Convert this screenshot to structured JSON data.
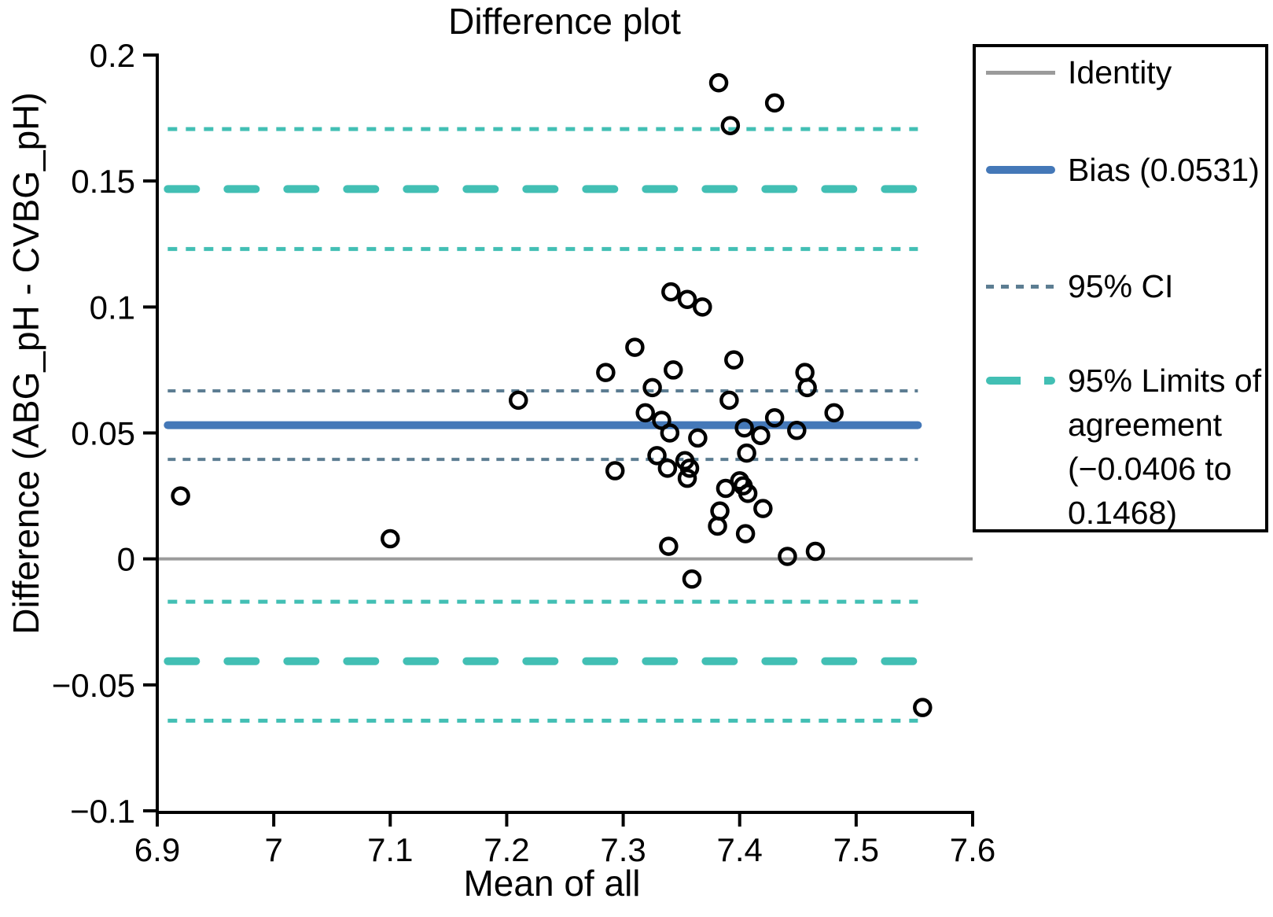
{
  "title": "Difference plot",
  "chart_data": {
    "type": "scatter",
    "title": "Difference plot",
    "xlabel": "Mean of all",
    "ylabel": "Difference (ABG_pH - CVBG_pH)",
    "xlim": [
      6.9,
      7.6
    ],
    "ylim": [
      -0.1,
      0.2
    ],
    "grid": false,
    "legend_position": "outside-right",
    "x_ticks": [
      {
        "v": 6.9,
        "label": "6.9"
      },
      {
        "v": 7.0,
        "label": "7"
      },
      {
        "v": 7.1,
        "label": "7.1"
      },
      {
        "v": 7.2,
        "label": "7.2"
      },
      {
        "v": 7.3,
        "label": "7.3"
      },
      {
        "v": 7.4,
        "label": "7.4"
      },
      {
        "v": 7.5,
        "label": "7.5"
      },
      {
        "v": 7.6,
        "label": "7.6"
      }
    ],
    "y_ticks": [
      {
        "v": 0.2,
        "label": "0.2"
      },
      {
        "v": 0.15,
        "label": "0.15"
      },
      {
        "v": 0.1,
        "label": "0.1"
      },
      {
        "v": 0.05,
        "label": "0.05"
      },
      {
        "v": 0,
        "label": "0"
      },
      {
        "v": -0.05,
        "label": "−0.05"
      },
      {
        "v": -0.1,
        "label": "−0.1"
      }
    ],
    "statistics": {
      "bias": 0.0531,
      "bias_ci": [
        0.0395,
        0.0667
      ],
      "loa_lower": -0.0406,
      "loa_upper": 0.1468,
      "loa_lower_ci": [
        -0.0642,
        -0.017
      ],
      "loa_upper_ci": [
        0.123,
        0.1706
      ]
    },
    "ref_lines": [
      {
        "name": "loa-upper-ci-outer-line",
        "value": 0.1706,
        "style": "loa_ci"
      },
      {
        "name": "loa-upper-line",
        "value": 0.1468,
        "style": "loa"
      },
      {
        "name": "loa-upper-ci-inner-line",
        "value": 0.123,
        "style": "loa_ci"
      },
      {
        "name": "bias-ci-upper-line",
        "value": 0.0667,
        "style": "bias_ci"
      },
      {
        "name": "bias-line",
        "value": 0.0531,
        "style": "bias"
      },
      {
        "name": "bias-ci-lower-line",
        "value": 0.0395,
        "style": "bias_ci"
      },
      {
        "name": "identity-line",
        "value": 0,
        "style": "identity"
      },
      {
        "name": "loa-lower-ci-inner-line",
        "value": -0.017,
        "style": "loa_ci"
      },
      {
        "name": "loa-lower-line",
        "value": -0.0406,
        "style": "loa"
      },
      {
        "name": "loa-lower-ci-outer-line",
        "value": -0.0642,
        "style": "loa_ci"
      }
    ],
    "points": [
      [
        6.92,
        0.025
      ],
      [
        7.1,
        0.008
      ],
      [
        7.21,
        0.063
      ],
      [
        7.285,
        0.074
      ],
      [
        7.293,
        0.035
      ],
      [
        7.31,
        0.084
      ],
      [
        7.319,
        0.058
      ],
      [
        7.325,
        0.068
      ],
      [
        7.329,
        0.041
      ],
      [
        7.333,
        0.055
      ],
      [
        7.338,
        0.036
      ],
      [
        7.339,
        0.005
      ],
      [
        7.341,
        0.106
      ],
      [
        7.343,
        0.075
      ],
      [
        7.34,
        0.05
      ],
      [
        7.353,
        0.039
      ],
      [
        7.355,
        0.103
      ],
      [
        7.355,
        0.032
      ],
      [
        7.357,
        0.036
      ],
      [
        7.359,
        -0.008
      ],
      [
        7.364,
        0.048
      ],
      [
        7.368,
        0.1
      ],
      [
        7.381,
        0.013
      ],
      [
        7.382,
        0.189
      ],
      [
        7.383,
        0.019
      ],
      [
        7.388,
        0.028
      ],
      [
        7.391,
        0.063
      ],
      [
        7.392,
        0.172
      ],
      [
        7.395,
        0.079
      ],
      [
        7.4,
        0.031
      ],
      [
        7.403,
        0.029
      ],
      [
        7.404,
        0.052
      ],
      [
        7.405,
        0.01
      ],
      [
        7.406,
        0.042
      ],
      [
        7.407,
        0.026
      ],
      [
        7.418,
        0.049
      ],
      [
        7.42,
        0.02
      ],
      [
        7.43,
        0.056
      ],
      [
        7.43,
        0.181
      ],
      [
        7.441,
        0.001
      ],
      [
        7.449,
        0.051
      ],
      [
        7.456,
        0.074
      ],
      [
        7.458,
        0.068
      ],
      [
        7.465,
        0.003
      ],
      [
        7.481,
        0.058
      ],
      [
        7.557,
        -0.059
      ]
    ]
  },
  "legend": {
    "items": [
      {
        "label": "Identity",
        "style": "identity"
      },
      {
        "label": "Bias (0.0531)",
        "style": "bias"
      },
      {
        "label": "95% CI",
        "style": "ci"
      },
      {
        "label": "95% Limits of\nagreement\n(−0.0406 to\n0.1468)",
        "style": "loa"
      }
    ]
  },
  "colors": {
    "bias_blue": "#4478b8",
    "loa_teal": "#42bfb4",
    "ci_slate": "#5c7d92",
    "identity_gray": "#9b9b9b",
    "marker_black": "#000000"
  }
}
